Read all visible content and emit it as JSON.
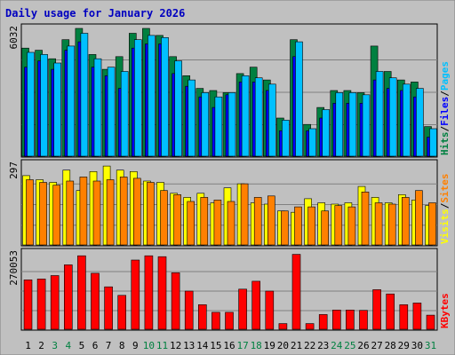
{
  "chart_data": {
    "type": "bar",
    "title": "Daily usage for January 2026",
    "categories": [
      "1",
      "2",
      "3",
      "4",
      "5",
      "6",
      "7",
      "8",
      "9",
      "10",
      "11",
      "12",
      "13",
      "14",
      "15",
      "16",
      "17",
      "18",
      "19",
      "20",
      "21",
      "22",
      "23",
      "24",
      "25",
      "26",
      "27",
      "28",
      "29",
      "30",
      "31"
    ],
    "weekend_days": [
      "3",
      "4",
      "10",
      "11",
      "17",
      "18",
      "24",
      "25",
      "31"
    ],
    "panels": [
      {
        "id": "hits",
        "scale_max_label": "6032",
        "ymax": 6032,
        "legend": [
          {
            "text": "Hits",
            "color": "#008040"
          },
          {
            "text": "/",
            "color": "#000000"
          },
          {
            "text": "Files",
            "color": "#0000ff"
          },
          {
            "text": "/",
            "color": "#000000"
          },
          {
            "text": "Pages",
            "color": "#00c0ff"
          }
        ],
        "series": [
          {
            "name": "Hits",
            "color": "#008040",
            "values": [
              5100,
              5000,
              4600,
              5500,
              6032,
              4800,
              4100,
              4700,
              5800,
              6032,
              5700,
              4700,
              3800,
              3200,
              3100,
              3000,
              3900,
              4200,
              3600,
              1800,
              5500,
              1500,
              2300,
              3100,
              3100,
              3000,
              5200,
              4000,
              3600,
              3500,
              1400
            ]
          },
          {
            "name": "Files",
            "color": "#0000ff",
            "values": [
              4200,
              4500,
              4100,
              5000,
              5400,
              4200,
              3800,
              3200,
              5100,
              5300,
              5300,
              3900,
              3300,
              2800,
              2300,
              2900,
              3500,
              3500,
              3100,
              1200,
              4700,
              1200,
              1800,
              2500,
              2500,
              2500,
              3600,
              3200,
              3100,
              2800,
              900
            ]
          },
          {
            "name": "Pages",
            "color": "#00c0ff",
            "values": [
              4900,
              4800,
              4400,
              5200,
              5800,
              4600,
              4200,
              4000,
              5500,
              5700,
              5600,
              4500,
              3600,
              3000,
              2800,
              3000,
              3800,
              3700,
              3400,
              1700,
              5400,
              1300,
              2200,
              3000,
              3000,
              2900,
              4000,
              3700,
              3400,
              3200,
              1300
            ]
          }
        ]
      },
      {
        "id": "visits",
        "scale_max_label": "297",
        "ymax": 297,
        "legend": [
          {
            "text": "Visits",
            "color": "#ffff00"
          },
          {
            "text": "/",
            "color": "#000000"
          },
          {
            "text": "Sites",
            "color": "#ff8000"
          }
        ],
        "series": [
          {
            "name": "Visits",
            "color": "#ffff00",
            "values": [
              255,
              240,
              230,
              275,
              200,
              270,
              290,
              275,
              270,
              235,
              230,
              190,
              175,
              190,
              155,
              210,
              225,
              155,
              150,
              125,
              120,
              170,
              155,
              150,
              155,
              215,
              175,
              155,
              185,
              165,
              145
            ]
          },
          {
            "name": "Sites",
            "color": "#ff8000",
            "values": [
              240,
              230,
              220,
              235,
              250,
              235,
              240,
              250,
              245,
              230,
              200,
              185,
              160,
              175,
              165,
              160,
              225,
              175,
              180,
              125,
              140,
              140,
              125,
              145,
              140,
              195,
              155,
              150,
              175,
              200,
              155
            ]
          }
        ]
      },
      {
        "id": "kbytes",
        "scale_max_label": "270053",
        "ymax": 270053,
        "legend": [
          {
            "text": "KBytes",
            "color": "#ff0000"
          }
        ],
        "series": [
          {
            "name": "KBytes",
            "color": "#ff0000",
            "values": [
              175000,
              178000,
              190000,
              228000,
              260000,
              198000,
              150000,
              120000,
              245000,
              260000,
              257000,
              200000,
              135000,
              87000,
              60000,
              60000,
              142000,
              170000,
              135000,
              20000,
              265000,
              20000,
              52000,
              68000,
              68000,
              67000,
              140000,
              125000,
              87000,
              93000,
              50000
            ]
          }
        ]
      }
    ]
  }
}
